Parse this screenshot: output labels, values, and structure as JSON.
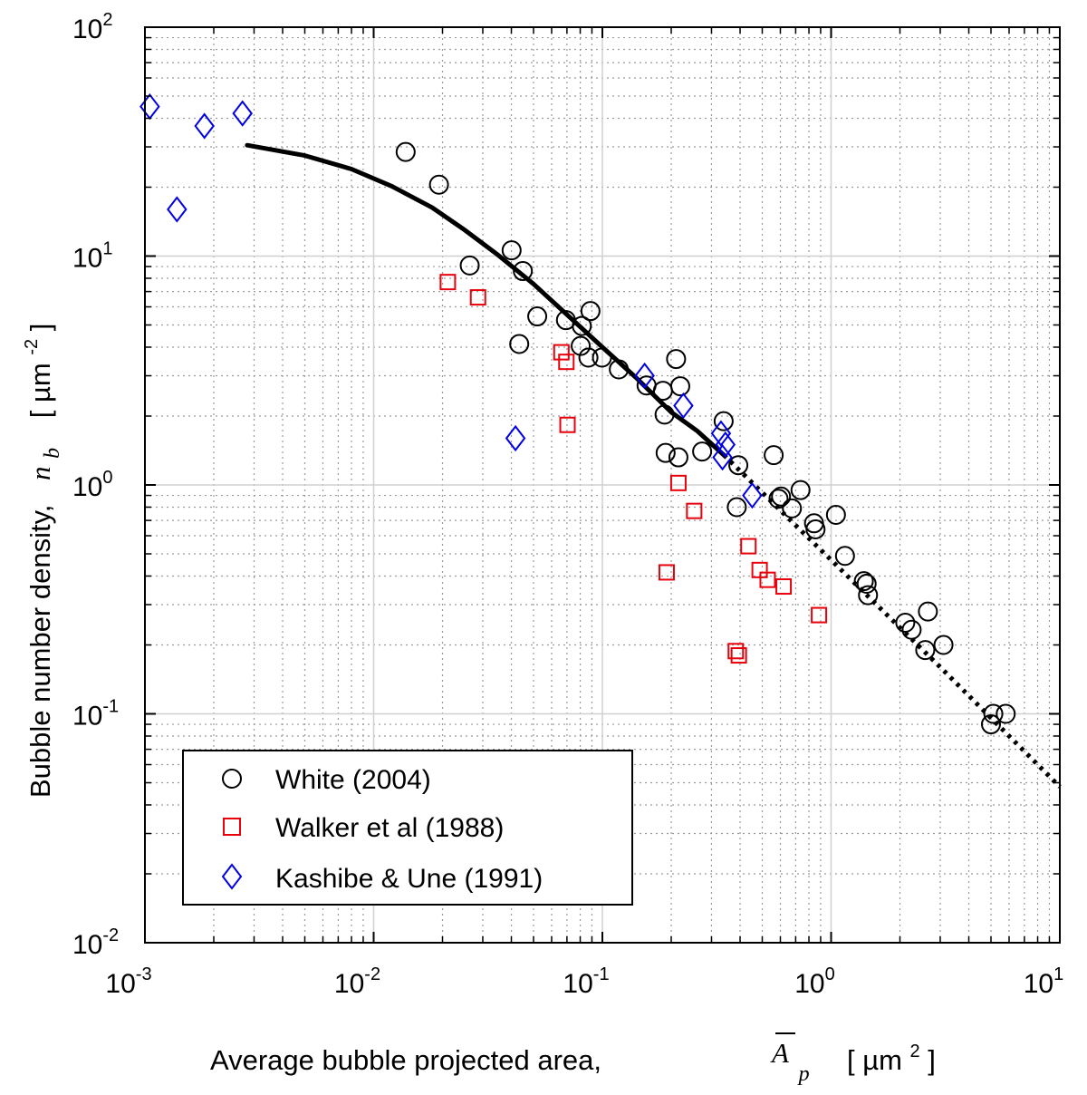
{
  "chart_data": {
    "type": "scatter",
    "x_scale": "log",
    "y_scale": "log",
    "xlim": [
      0.001,
      10
    ],
    "ylim": [
      0.01,
      100
    ],
    "grid": true,
    "minor_grid": true,
    "legend_position": "bottom-left",
    "x_ticks": [
      {
        "value": 0.001,
        "base": "10",
        "exp": "-3"
      },
      {
        "value": 0.01,
        "base": "10",
        "exp": "-2"
      },
      {
        "value": 0.1,
        "base": "10",
        "exp": "-1"
      },
      {
        "value": 1,
        "base": "10",
        "exp": "0"
      },
      {
        "value": 10,
        "base": "10",
        "exp": "1"
      }
    ],
    "y_ticks": [
      {
        "value": 0.01,
        "base": "10",
        "exp": "-2"
      },
      {
        "value": 0.1,
        "base": "10",
        "exp": "-1"
      },
      {
        "value": 1,
        "base": "10",
        "exp": "0"
      },
      {
        "value": 10,
        "base": "10",
        "exp": "1"
      },
      {
        "value": 100,
        "base": "10",
        "exp": "2"
      }
    ],
    "xlabel": {
      "text": "Average bubble projected area,",
      "symbol": "A",
      "subscript": "p",
      "unit_open": "[ µm",
      "unit_exp": "2",
      "unit_close": " ]"
    },
    "ylabel": {
      "text": "Bubble number density,",
      "symbol": "n",
      "subscript": "b",
      "unit_open": "[ µm",
      "unit_exp": "-2",
      "unit_close": " ]"
    },
    "series": [
      {
        "name": "White (2004)",
        "marker": "circle",
        "color": "#000000",
        "points": [
          [
            0.0138,
            28.5
          ],
          [
            0.0193,
            20.5
          ],
          [
            0.0263,
            9.1
          ],
          [
            0.0401,
            10.6
          ],
          [
            0.0449,
            8.6
          ],
          [
            0.0519,
            5.45
          ],
          [
            0.0433,
            4.13
          ],
          [
            0.0693,
            5.25
          ],
          [
            0.0804,
            4.05
          ],
          [
            0.0813,
            4.95
          ],
          [
            0.0887,
            5.75
          ],
          [
            0.0869,
            3.6
          ],
          [
            0.0996,
            3.6
          ],
          [
            0.118,
            3.2
          ],
          [
            0.156,
            2.72
          ],
          [
            0.184,
            2.58
          ],
          [
            0.187,
            2.03
          ],
          [
            0.189,
            1.38
          ],
          [
            0.21,
            3.55
          ],
          [
            0.219,
            2.7
          ],
          [
            0.215,
            1.32
          ],
          [
            0.273,
            1.4
          ],
          [
            0.339,
            1.9
          ],
          [
            0.393,
            1.22
          ],
          [
            0.387,
            0.8
          ],
          [
            0.561,
            1.35
          ],
          [
            0.589,
            0.87
          ],
          [
            0.604,
            0.89
          ],
          [
            0.674,
            0.79
          ],
          [
            0.735,
            0.95
          ],
          [
            0.842,
            0.68
          ],
          [
            0.855,
            0.64
          ],
          [
            1.05,
            0.74
          ],
          [
            1.15,
            0.49
          ],
          [
            1.39,
            0.38
          ],
          [
            1.43,
            0.37
          ],
          [
            1.45,
            0.33
          ],
          [
            2.11,
            0.25
          ],
          [
            2.25,
            0.233
          ],
          [
            2.58,
            0.19
          ],
          [
            2.65,
            0.28
          ],
          [
            3.1,
            0.2
          ],
          [
            5.0,
            0.09
          ],
          [
            5.12,
            0.1
          ],
          [
            5.8,
            0.1
          ]
        ]
      },
      {
        "name": "Walker et al (1988)",
        "marker": "square",
        "color": "#e8000b",
        "points": [
          [
            0.0211,
            7.7
          ],
          [
            0.0286,
            6.6
          ],
          [
            0.0662,
            3.8
          ],
          [
            0.0696,
            3.45
          ],
          [
            0.0704,
            1.83
          ],
          [
            0.191,
            0.415
          ],
          [
            0.215,
            1.02
          ],
          [
            0.252,
            0.77
          ],
          [
            0.383,
            0.188
          ],
          [
            0.395,
            0.18
          ],
          [
            0.435,
            0.54
          ],
          [
            0.487,
            0.425
          ],
          [
            0.528,
            0.385
          ],
          [
            0.62,
            0.36
          ],
          [
            0.885,
            0.27
          ]
        ]
      },
      {
        "name": "Kashibe & Une (1991)",
        "marker": "diamond",
        "color": "#0000e8",
        "points": [
          [
            0.00105,
            45.0
          ],
          [
            0.00138,
            16.0
          ],
          [
            0.00182,
            37.0
          ],
          [
            0.00267,
            42.0
          ],
          [
            0.0417,
            1.6
          ],
          [
            0.153,
            3.0
          ],
          [
            0.226,
            2.22
          ],
          [
            0.33,
            1.68
          ],
          [
            0.335,
            1.32
          ],
          [
            0.345,
            1.5
          ],
          [
            0.452,
            0.9
          ]
        ]
      }
    ],
    "fit_solid": {
      "x": [
        0.0028,
        0.005,
        0.008,
        0.012,
        0.018,
        0.025,
        0.035,
        0.05,
        0.07,
        0.1,
        0.14,
        0.2,
        0.26,
        0.34
      ],
      "y": [
        30.5,
        27.5,
        24.0,
        20.2,
        16.3,
        13.0,
        10.1,
        7.55,
        5.55,
        4.0,
        2.95,
        2.08,
        1.72,
        1.35
      ]
    },
    "fit_dotted": {
      "x": [
        0.34,
        1.0,
        3.0,
        10.0
      ],
      "y": [
        1.35,
        0.47,
        0.16,
        0.048
      ]
    }
  }
}
